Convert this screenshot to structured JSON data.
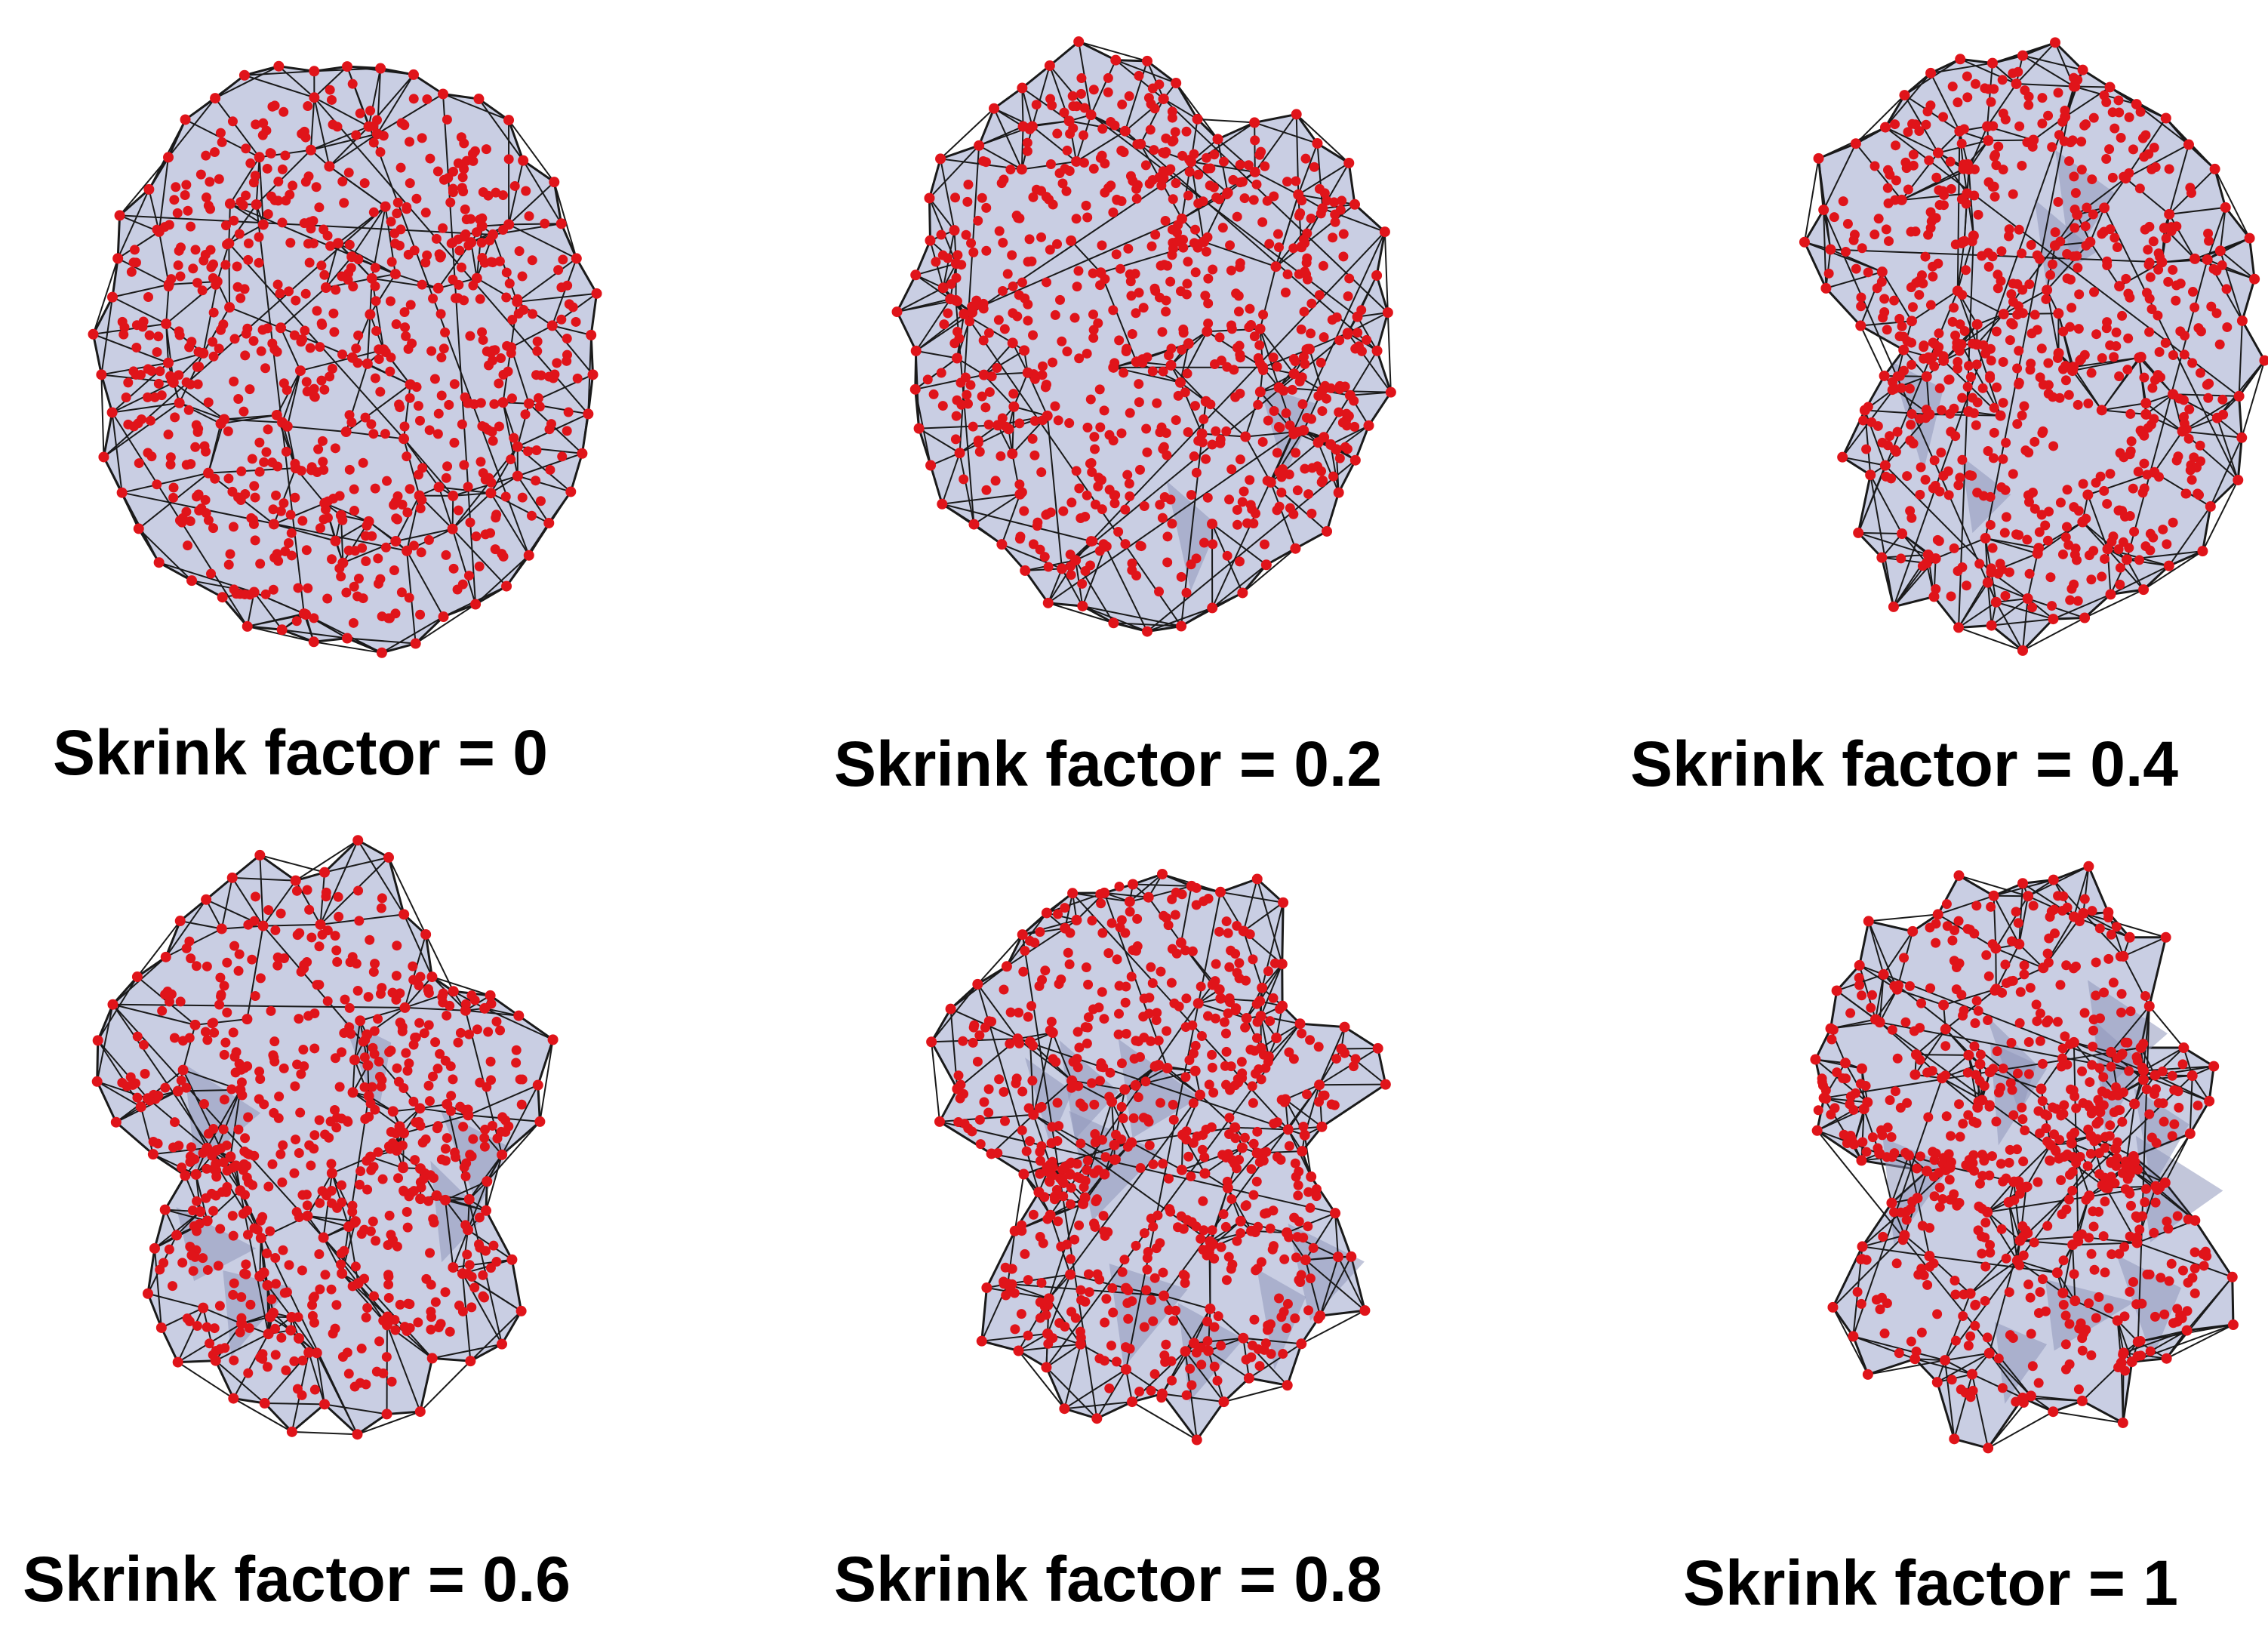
{
  "figure": {
    "colors": {
      "fill": "#c9cee3",
      "edge": "#1a1a1a",
      "point": "#e0141a",
      "dense_fill": "#8f97bb"
    },
    "panels": [
      {
        "caption": "Skrink factor = 0",
        "shrink_factor": 0
      },
      {
        "caption": "Skrink factor = 0.2",
        "shrink_factor": 0.2
      },
      {
        "caption": "Skrink factor = 0.4",
        "shrink_factor": 0.4
      },
      {
        "caption": "Skrink factor = 0.6",
        "shrink_factor": 0.6
      },
      {
        "caption": "Skrink factor = 0.8",
        "shrink_factor": 0.8
      },
      {
        "caption": "Skrink factor = 1",
        "shrink_factor": 1
      }
    ]
  }
}
